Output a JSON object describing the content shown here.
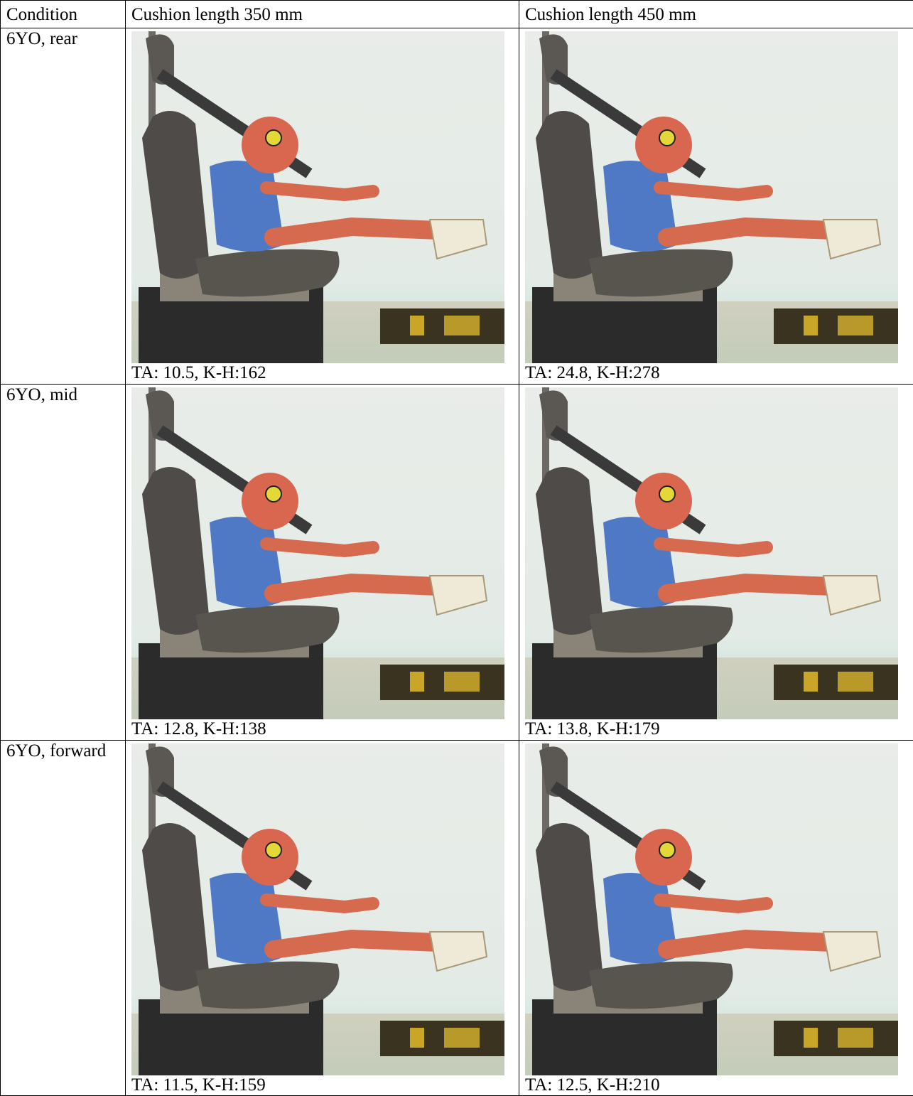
{
  "table": {
    "header": [
      "Condition",
      "Cushion length 350 mm",
      "Cushion length 450 mm"
    ],
    "rows": [
      {
        "condition": "6YO, rear",
        "captions": [
          "TA: 10.5, K-H:162",
          "TA: 24.8, K-H:278"
        ]
      },
      {
        "condition": "6YO, mid",
        "captions": [
          "TA: 12.8, K-H:138",
          "TA: 13.8, K-H:179"
        ]
      },
      {
        "condition": "6YO, forward",
        "captions": [
          "TA: 11.5, K-H:159",
          "TA: 12.5, K-H:210"
        ]
      }
    ]
  }
}
